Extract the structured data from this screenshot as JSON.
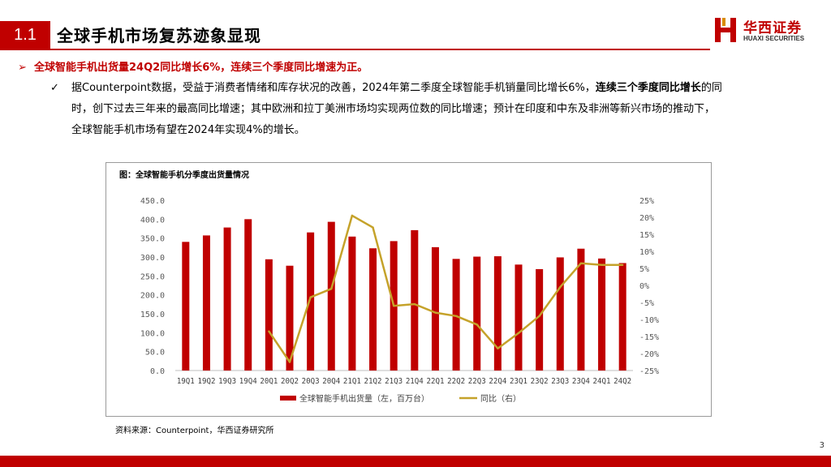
{
  "header": {
    "section_number": "1.1",
    "title": "全球手机市场复苏迹象显现",
    "logo_cn": "华西证券",
    "logo_en": "HUAXI SECURITIES",
    "accent_color": "#c00000"
  },
  "bullet": {
    "marker": "➢",
    "text": "全球智能手机出货量24Q2同比增长6%，连续三个季度同比增速为正。"
  },
  "paragraph": {
    "marker": "✓",
    "l1a": "据Counterpoint数据，受益于消费者情绪和库存状况的改善，2024年第二季度全球智能手机销量同比增长6%，",
    "l1b": "连续三个季度同比增长",
    "l1c": "的同",
    "l2": "时，创下过去三年来的最高同比增速；其中欧洲和拉丁美洲市场均实现两位数的同比增速；预计在印度和中东及非洲等新兴市场的推动下，",
    "l3": "全球智能手机市场有望在2024年实现4%的增长。"
  },
  "chart_title": "图：全球智能手机分季度出货量情况",
  "chart_data": {
    "type": "bar",
    "categories": [
      "19Q1",
      "19Q2",
      "19Q3",
      "19Q4",
      "20Q1",
      "20Q2",
      "20Q3",
      "20Q4",
      "21Q1",
      "21Q2",
      "21Q3",
      "21Q4",
      "22Q1",
      "22Q2",
      "22Q3",
      "22Q4",
      "23Q1",
      "23Q2",
      "23Q3",
      "23Q4",
      "24Q1",
      "24Q2"
    ],
    "series": [
      {
        "name": "全球智能手机出货量（左，百万台）",
        "type": "bar",
        "axis": "left",
        "color": "#c00000",
        "values": [
          340,
          357,
          378,
          400,
          294,
          277,
          365,
          393,
          354,
          323,
          342,
          371,
          326,
          295,
          301,
          302,
          280,
          268,
          299,
          322,
          296,
          284
        ]
      },
      {
        "name": "同比（右）",
        "type": "line",
        "axis": "right",
        "color": "#c5a22a",
        "values": [
          null,
          null,
          null,
          null,
          -13.5,
          -22.5,
          -3.5,
          -1.0,
          20.5,
          17.0,
          -6.0,
          -5.5,
          -8.0,
          -9.0,
          -11.5,
          -18.5,
          -14.0,
          -9.0,
          -0.5,
          6.5,
          6.0,
          6.0
        ]
      }
    ],
    "left_axis": {
      "ylim": [
        0,
        450
      ],
      "ticks": [
        "0.0",
        "50.0",
        "100.0",
        "150.0",
        "200.0",
        "250.0",
        "300.0",
        "350.0",
        "400.0",
        "450.0"
      ]
    },
    "right_axis": {
      "ylim": [
        -25,
        25
      ],
      "ticks": [
        "-25%",
        "-20%",
        "-15%",
        "-10%",
        "-5%",
        "0%",
        "5%",
        "10%",
        "15%",
        "20%",
        "25%"
      ]
    },
    "grid": false,
    "legend_position": "bottom"
  },
  "source": "资料来源：Counterpoint，华西证券研究所",
  "page_number": "3"
}
